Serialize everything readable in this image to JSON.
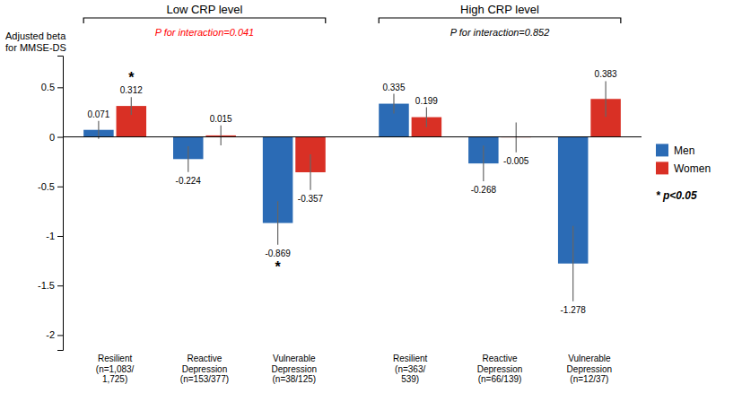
{
  "chart_data": {
    "type": "bar",
    "ylabel": "Adjusted beta\nfor MMSE-DS",
    "categories": [
      "Resilient\n(n=1,083/\n1,725)",
      "Reactive\nDepression\n(n=153/377)",
      "Vulnerable\nDepression\n(n=38/125)",
      "Resilient\n(n=363/\n539)",
      "Reactive\nDepression\n(n=66/139)",
      "Vulnerable\nDepression\n(n=12/37)"
    ],
    "series": [
      {
        "name": "Men",
        "color": "#2B6BB5",
        "values": [
          0.071,
          -0.224,
          -0.869,
          0.335,
          -0.268,
          -1.278
        ],
        "errors": [
          0.09,
          0.13,
          0.22,
          0.1,
          0.18,
          0.38
        ]
      },
      {
        "name": "Women",
        "color": "#D93025",
        "values": [
          0.312,
          0.015,
          -0.357,
          0.199,
          -0.005,
          0.383
        ],
        "errors": [
          0.09,
          0.1,
          0.18,
          0.1,
          0.15,
          0.18
        ]
      }
    ],
    "sections": [
      {
        "label": "Low CRP level",
        "annotation": "P for interaction=0.041",
        "color": "red",
        "count": 3
      },
      {
        "label": "High CRP level",
        "annotation": "P for interaction=0.852",
        "color": "black",
        "count": 3
      }
    ],
    "annotations": [
      {
        "text": "*",
        "series": 1,
        "index": 0
      },
      {
        "text": "*",
        "series": 0,
        "index": 2
      }
    ],
    "note": "* p<0.05",
    "ylim": [
      -2.15,
      0.82
    ],
    "yticks": [
      -2.0,
      -1.5,
      -1.0,
      -0.5,
      0.0,
      0.5
    ],
    "grid": false,
    "legend": "right",
    "data_labels": true
  }
}
